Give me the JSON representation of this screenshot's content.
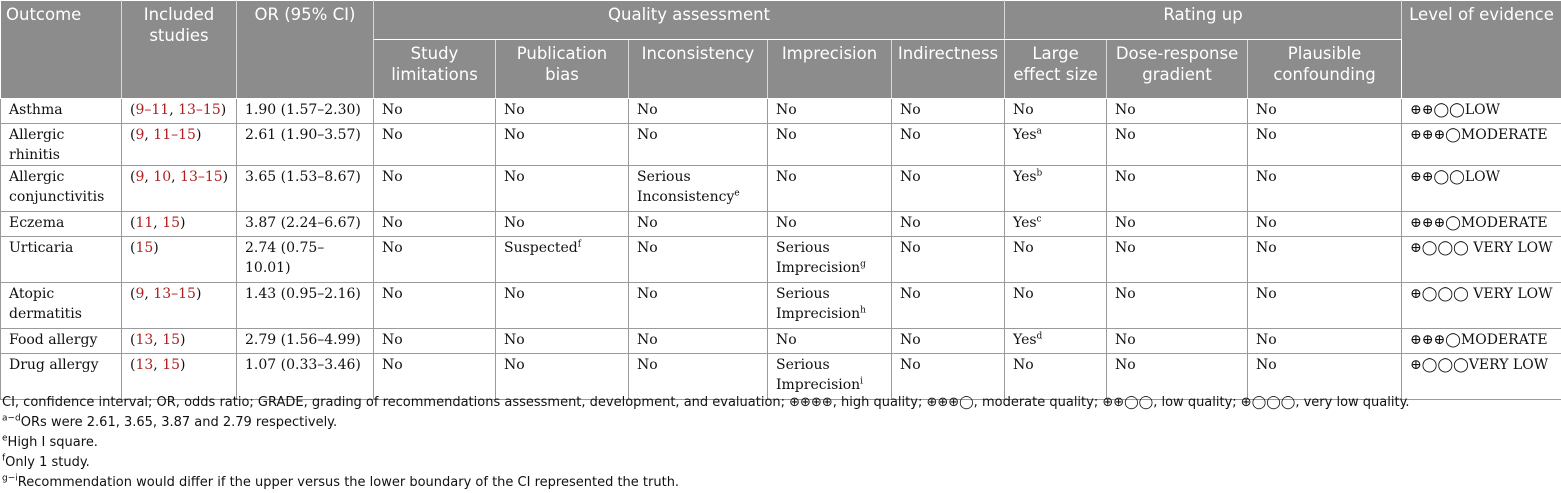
{
  "header": {
    "outcome": "Outcome",
    "included_studies": "Included studies",
    "or_ci": "OR (95% CI)",
    "quality_assessment": "Quality assessment",
    "rating_up": "Rating up",
    "level_of_evidence": "Level of evidence",
    "study_limitations": "Study limitations",
    "publication_bias": "Publication bias",
    "inconsistency": "Inconsistency",
    "imprecision": "Imprecision",
    "indirectness": "Indirectness",
    "large_effect_size": "Large effect size",
    "dose_response_gradient": "Dose-response gradient",
    "plausible_confounding": "Plausible confounding"
  },
  "rows": [
    {
      "outcome": "Asthma",
      "open": "(",
      "refs": [
        "9–11",
        "13–15"
      ],
      "close": ")",
      "or": "1.90 (1.57–2.30)",
      "study_limitations": "No",
      "publication_bias": "No",
      "publication_bias_sup": "",
      "inconsistency": "No",
      "inconsistency_sup": "",
      "imprecision": "No",
      "imprecision_sup": "",
      "indirectness": "No",
      "large_effect": "No",
      "large_effect_sup": "",
      "dose_response": "No",
      "plausible_confounding": "No",
      "level": "⊕⊕◯◯LOW"
    },
    {
      "outcome": "Allergic rhinitis",
      "open": "(",
      "refs": [
        "9",
        "11–15"
      ],
      "close": ")",
      "or": "2.61 (1.90–3.57)",
      "study_limitations": "No",
      "publication_bias": "No",
      "publication_bias_sup": "",
      "inconsistency": "No",
      "inconsistency_sup": "",
      "imprecision": "No",
      "imprecision_sup": "",
      "indirectness": "No",
      "large_effect": "Yes",
      "large_effect_sup": "a",
      "dose_response": "No",
      "plausible_confounding": "No",
      "level": "⊕⊕⊕◯MODERATE"
    },
    {
      "outcome": "Allergic conjunctivitis",
      "open": "(",
      "refs": [
        "9",
        "10",
        "13–15"
      ],
      "close": ")",
      "or": "3.65 (1.53–8.67)",
      "study_limitations": "No",
      "publication_bias": "No",
      "publication_bias_sup": "",
      "inconsistency": "Serious Inconsistency",
      "inconsistency_sup": "e",
      "imprecision": "No",
      "imprecision_sup": "",
      "indirectness": "No",
      "large_effect": "Yes",
      "large_effect_sup": "b",
      "dose_response": "No",
      "plausible_confounding": "No",
      "level": "⊕⊕◯◯LOW"
    },
    {
      "outcome": "Eczema",
      "open": "(",
      "refs": [
        "11",
        "15"
      ],
      "close": ")",
      "or": "3.87 (2.24–6.67)",
      "study_limitations": "No",
      "publication_bias": "No",
      "publication_bias_sup": "",
      "inconsistency": "No",
      "inconsistency_sup": "",
      "imprecision": "No",
      "imprecision_sup": "",
      "indirectness": "No",
      "large_effect": "Yes",
      "large_effect_sup": "c",
      "dose_response": "No",
      "plausible_confounding": "No",
      "level": "⊕⊕⊕◯MODERATE"
    },
    {
      "outcome": "Urticaria",
      "open": "(",
      "refs": [
        "15"
      ],
      "close": ")",
      "or": "2.74 (0.75–10.01)",
      "study_limitations": "No",
      "publication_bias": "Suspected",
      "publication_bias_sup": "f",
      "inconsistency": "No",
      "inconsistency_sup": "",
      "imprecision": "Serious Imprecision",
      "imprecision_sup": "g",
      "indirectness": "No",
      "large_effect": "No",
      "large_effect_sup": "",
      "dose_response": "No",
      "plausible_confounding": "No",
      "level": "⊕◯◯◯ VERY LOW"
    },
    {
      "outcome": "Atopic dermatitis",
      "open": "(",
      "refs": [
        "9",
        "13–15"
      ],
      "close": ")",
      "or": "1.43 (0.95–2.16)",
      "study_limitations": "No",
      "publication_bias": "No",
      "publication_bias_sup": "",
      "inconsistency": "No",
      "inconsistency_sup": "",
      "imprecision": "Serious Imprecision",
      "imprecision_sup": "h",
      "indirectness": "No",
      "large_effect": "No",
      "large_effect_sup": "",
      "dose_response": "No",
      "plausible_confounding": "No",
      "level": "⊕◯◯◯ VERY LOW"
    },
    {
      "outcome": "Food allergy",
      "open": "(",
      "refs": [
        "13",
        "15"
      ],
      "close": ")",
      "or": "2.79 (1.56–4.99)",
      "study_limitations": "No",
      "publication_bias": "No",
      "publication_bias_sup": "",
      "inconsistency": "No",
      "inconsistency_sup": "",
      "imprecision": "No",
      "imprecision_sup": "",
      "indirectness": "No",
      "large_effect": "Yes",
      "large_effect_sup": "d",
      "dose_response": "No",
      "plausible_confounding": "No",
      "level": "⊕⊕⊕◯MODERATE"
    },
    {
      "outcome": "Drug allergy",
      "open": "(",
      "refs": [
        "13",
        "15"
      ],
      "close": ")",
      "or": "1.07 (0.33–3.46)",
      "study_limitations": "No",
      "publication_bias": "No",
      "publication_bias_sup": "",
      "inconsistency": "No",
      "inconsistency_sup": "",
      "imprecision": "Serious Imprecision",
      "imprecision_sup": "i",
      "indirectness": "No",
      "large_effect": "No",
      "large_effect_sup": "",
      "dose_response": "No",
      "plausible_confounding": "No",
      "level": "⊕◯◯◯VERY LOW"
    }
  ],
  "footnotes": {
    "abbreviations": "CI, confidence interval; OR, odds ratio; GRADE, grading of recommendations assessment, development, and evaluation; ⊕⊕⊕⊕, high quality; ⊕⊕⊕◯, moderate quality; ⊕⊕◯◯, low quality; ⊕◯◯◯, very low quality.",
    "note_ad_mark": "a−d",
    "note_ad": "ORs were 2.61, 3.65, 3.87 and 2.79 respectively.",
    "note_e_mark": "e",
    "note_e": "High I square.",
    "note_f_mark": "f",
    "note_f": "Only 1 study.",
    "note_gi_mark": "g−i",
    "note_gi": "Recommendation would differ if the upper versus the lower boundary of the CI represented the truth."
  },
  "colors": {
    "header_bg": "#8c8c8c",
    "reference_link": "#b01f1f",
    "grid_line": "#9a9a9a"
  }
}
